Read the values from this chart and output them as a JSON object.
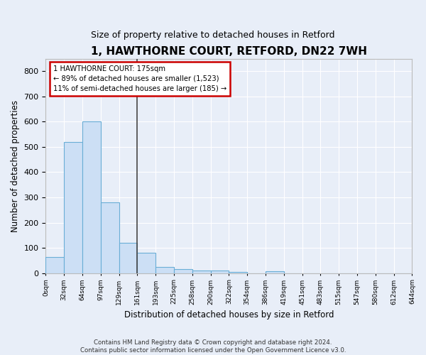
{
  "title": "1, HAWTHORNE COURT, RETFORD, DN22 7WH",
  "subtitle": "Size of property relative to detached houses in Retford",
  "xlabel": "Distribution of detached houses by size in Retford",
  "ylabel": "Number of detached properties",
  "bin_labels": [
    "0sqm",
    "32sqm",
    "64sqm",
    "97sqm",
    "129sqm",
    "161sqm",
    "193sqm",
    "225sqm",
    "258sqm",
    "290sqm",
    "322sqm",
    "354sqm",
    "386sqm",
    "419sqm",
    "451sqm",
    "483sqm",
    "515sqm",
    "547sqm",
    "580sqm",
    "612sqm",
    "644sqm"
  ],
  "bar_heights": [
    65,
    520,
    600,
    280,
    120,
    80,
    25,
    15,
    10,
    10,
    5,
    0,
    8,
    0,
    0,
    0,
    0,
    0,
    0,
    0
  ],
  "bar_color": "#ccdff5",
  "bar_edge_color": "#6aaed6",
  "ylim": [
    0,
    850
  ],
  "yticks": [
    0,
    100,
    200,
    300,
    400,
    500,
    600,
    700,
    800
  ],
  "property_bin_index": 5,
  "annotation_text_line1": "1 HAWTHORNE COURT: 175sqm",
  "annotation_text_line2": "← 89% of detached houses are smaller (1,523)",
  "annotation_text_line3": "11% of semi-detached houses are larger (185) →",
  "vline_color": "#444444",
  "annotation_box_color": "#ffffff",
  "annotation_box_edge": "#cc0000",
  "background_color": "#e8eef8",
  "grid_color": "#ffffff",
  "footer_line1": "Contains HM Land Registry data © Crown copyright and database right 2024.",
  "footer_line2": "Contains public sector information licensed under the Open Government Licence v3.0."
}
